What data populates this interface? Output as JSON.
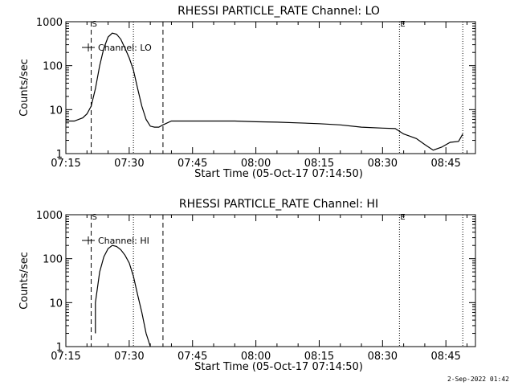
{
  "footer": {
    "timestamp": "2-Sep-2022 01:42"
  },
  "chart_data": [
    {
      "type": "line",
      "title": "RHESSI PARTICLE_RATE Channel: LO",
      "xlabel": "Start Time (05-Oct-17 07:14:50)",
      "ylabel": "Counts/sec",
      "yscale": "log",
      "ylim": [
        1,
        1000
      ],
      "xlim": [
        "07:15",
        "08:52"
      ],
      "xticks": [
        "07:15",
        "07:30",
        "07:45",
        "08:00",
        "08:15",
        "08:30",
        "08:45"
      ],
      "yticks": [
        "1",
        "10",
        "100",
        "1000"
      ],
      "legend": {
        "label": "Channel: LO",
        "position": "top-left"
      },
      "markers": [
        {
          "label": "S",
          "time": "07:21",
          "style": "dashed"
        },
        {
          "label": "",
          "time": "07:31",
          "style": "dotted"
        },
        {
          "label": "",
          "time": "07:38",
          "style": "dashed"
        },
        {
          "label": "E",
          "time": "08:34",
          "style": "dotted"
        },
        {
          "label": "",
          "time": "08:49",
          "style": "dotted"
        }
      ],
      "series": [
        {
          "name": "Channel: LO",
          "x": [
            "07:15",
            "07:17",
            "07:19",
            "07:20",
            "07:21",
            "07:22",
            "07:23",
            "07:24",
            "07:25",
            "07:26",
            "07:27",
            "07:28",
            "07:29",
            "07:30",
            "07:31",
            "07:32",
            "07:33",
            "07:34",
            "07:35",
            "07:36",
            "07:37",
            "07:38",
            "07:40",
            "07:42",
            "07:45",
            "07:50",
            "07:55",
            "08:00",
            "08:05",
            "08:10",
            "08:15",
            "08:20",
            "08:25",
            "08:30",
            "08:33",
            "08:35",
            "08:38",
            "08:40",
            "08:42",
            "08:44",
            "08:46",
            "08:48",
            "08:49"
          ],
          "values": [
            5.5,
            5.5,
            6.5,
            8,
            12,
            30,
            100,
            250,
            450,
            550,
            520,
            400,
            250,
            150,
            80,
            30,
            12,
            6,
            4.2,
            4,
            4,
            4.5,
            5.5,
            5.5,
            5.5,
            5.5,
            5.5,
            5.3,
            5.2,
            5,
            4.8,
            4.5,
            4,
            3.8,
            3.7,
            2.8,
            2.2,
            1.6,
            1.2,
            1.4,
            1.8,
            1.9,
            2.8
          ]
        }
      ]
    },
    {
      "type": "line",
      "title": "RHESSI PARTICLE_RATE Channel: HI",
      "xlabel": "Start Time (05-Oct-17 07:14:50)",
      "ylabel": "Counts/sec",
      "yscale": "log",
      "ylim": [
        1,
        1000
      ],
      "xlim": [
        "07:15",
        "08:52"
      ],
      "xticks": [
        "07:15",
        "07:30",
        "07:45",
        "08:00",
        "08:15",
        "08:30",
        "08:45"
      ],
      "yticks": [
        "1",
        "10",
        "100",
        "1000"
      ],
      "legend": {
        "label": "Channel: HI",
        "position": "top-left"
      },
      "markers": [
        {
          "label": "S",
          "time": "07:21",
          "style": "dashed"
        },
        {
          "label": "",
          "time": "07:31",
          "style": "dotted"
        },
        {
          "label": "",
          "time": "07:38",
          "style": "dashed"
        },
        {
          "label": "E",
          "time": "08:34",
          "style": "dotted"
        },
        {
          "label": "",
          "time": "08:49",
          "style": "dotted"
        }
      ],
      "series": [
        {
          "name": "Channel: HI",
          "x": [
            "07:22",
            "07:22",
            "07:23",
            "07:24",
            "07:25",
            "07:26",
            "07:27",
            "07:28",
            "07:29",
            "07:30",
            "07:31",
            "07:32",
            "07:33",
            "07:34",
            "07:35"
          ],
          "values": [
            2,
            10,
            50,
            110,
            170,
            200,
            190,
            160,
            120,
            80,
            40,
            15,
            6,
            2,
            1
          ]
        }
      ]
    }
  ]
}
